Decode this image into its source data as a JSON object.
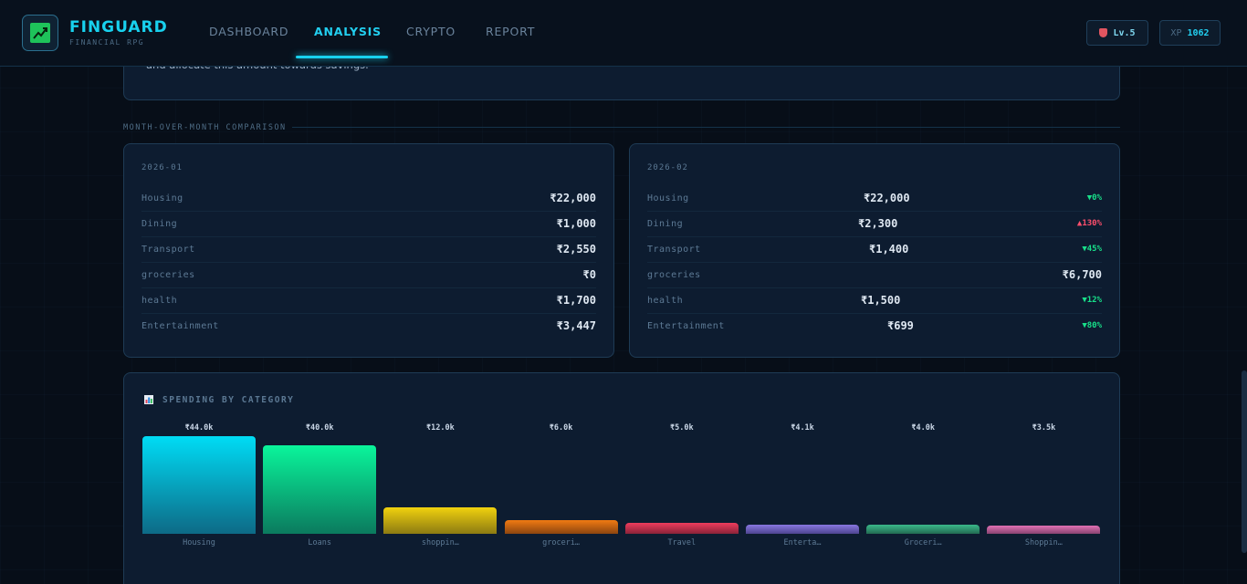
{
  "brand": {
    "title": "FINGUARD",
    "subtitle": "FINANCIAL RPG"
  },
  "nav": [
    {
      "label": "DASHBOARD",
      "active": false
    },
    {
      "label": "ANALYSIS",
      "active": true
    },
    {
      "label": "CRYPTO",
      "active": false
    },
    {
      "label": "REPORT",
      "active": false
    }
  ],
  "status": {
    "level": "Lv.5",
    "xp_label": "XP",
    "xp_value": "1062"
  },
  "advice": {
    "text_fragment": "and allocate this amount towards savings."
  },
  "comparison": {
    "section_label": "MONTH-OVER-MONTH COMPARISON",
    "months": [
      {
        "name": "2026-01",
        "rows": [
          {
            "category": "Housing",
            "amount": "₹22,000"
          },
          {
            "category": "Dining",
            "amount": "₹1,000"
          },
          {
            "category": "Transport",
            "amount": "₹2,550"
          },
          {
            "category": "groceries",
            "amount": "₹0"
          },
          {
            "category": "health",
            "amount": "₹1,700"
          },
          {
            "category": "Entertainment",
            "amount": "₹3,447"
          }
        ]
      },
      {
        "name": "2026-02",
        "rows": [
          {
            "category": "Housing",
            "amount": "₹22,000",
            "delta": "▼0%",
            "direction": "down"
          },
          {
            "category": "Dining",
            "amount": "₹2,300",
            "delta": "▲130%",
            "direction": "up"
          },
          {
            "category": "Transport",
            "amount": "₹1,400",
            "delta": "▼45%",
            "direction": "down"
          },
          {
            "category": "groceries",
            "amount": "₹6,700",
            "delta": "",
            "direction": ""
          },
          {
            "category": "health",
            "amount": "₹1,500",
            "delta": "▼12%",
            "direction": "down"
          },
          {
            "category": "Entertainment",
            "amount": "₹699",
            "delta": "▼80%",
            "direction": "down"
          }
        ]
      }
    ]
  },
  "spending_chart": {
    "title": "SPENDING BY CATEGORY",
    "icon": "bar-chart-icon"
  },
  "chart_data": {
    "type": "bar",
    "title": "SPENDING BY CATEGORY",
    "categories": [
      "Housing",
      "Loans",
      "shoppin…",
      "groceri…",
      "Travel",
      "Enterta…",
      "Groceri…",
      "Shoppin…"
    ],
    "values": [
      44000,
      40000,
      12000,
      6000,
      5000,
      4100,
      4000,
      3500
    ],
    "value_labels": [
      "₹44.0k",
      "₹40.0k",
      "₹12.0k",
      "₹6.0k",
      "₹5.0k",
      "₹4.1k",
      "₹4.0k",
      "₹3.5k"
    ],
    "colors": [
      [
        "#00dcf5",
        "#0d6a86"
      ],
      [
        "#0af59b",
        "#0b7a5e"
      ],
      [
        "#f1d20e",
        "#8c7a12"
      ],
      [
        "#f07a12",
        "#8c4510"
      ],
      [
        "#ee3c5c",
        "#8a2338"
      ],
      [
        "#8877e0",
        "#4d4590"
      ],
      [
        "#3ab98a",
        "#236a52"
      ],
      [
        "#e070b4",
        "#884470"
      ]
    ],
    "ylim": [
      0,
      44000
    ],
    "xlabel": "",
    "ylabel": "",
    "grid": false
  }
}
